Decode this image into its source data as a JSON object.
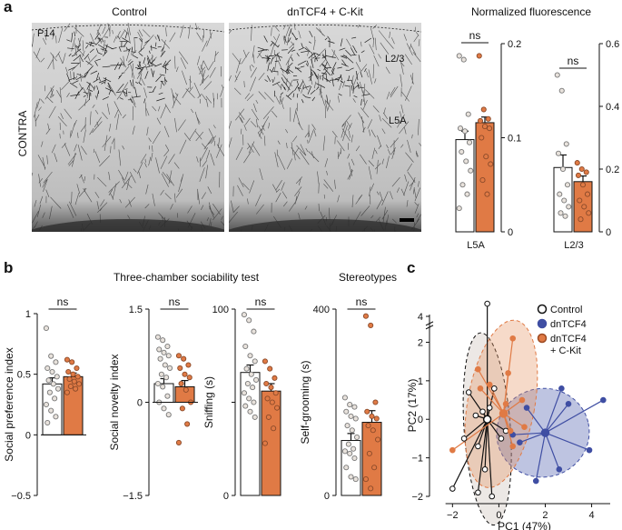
{
  "panel_a": {
    "label": "a",
    "images": [
      {
        "title": "Control",
        "age_label": "P14"
      },
      {
        "title": "dnTCF4 + C-Kit",
        "layer_labels": [
          "L2/3",
          "L5A"
        ]
      }
    ],
    "side_label": "CONTRA",
    "fluor_title": "Normalized fluorescence"
  },
  "panel_b": {
    "label": "b",
    "title_sociability": "Three-chamber sociability test",
    "title_stereotypes": "Stereotypes"
  },
  "panel_c": {
    "label": "c",
    "legend": [
      "Control",
      "dnTCF4",
      "dnTCF4\n+ C-Kit"
    ]
  },
  "colors": {
    "control": "#ffffff",
    "dntcf4": "#3f4ea3",
    "ckit": "#e07a45",
    "control_fill": "#e8e2dc"
  },
  "chart_data": [
    {
      "type": "bar",
      "id": "fluor_L5A",
      "xlabel": "L5A",
      "sig": "ns",
      "ylim": [
        0,
        0.2
      ],
      "yticks": [
        0,
        0.1,
        0.2
      ],
      "ytick_labels": [
        "0",
        "0.1",
        "0.2"
      ],
      "series": [
        {
          "name": "Control",
          "mean": 0.098,
          "sem": 0.009,
          "points": [
            0.187,
            0.183,
            0.125,
            0.11,
            0.107,
            0.095,
            0.085,
            0.075,
            0.065,
            0.05,
            0.04,
            0.025
          ]
        },
        {
          "name": "dnTCF4 + C-Kit",
          "mean": 0.116,
          "sem": 0.006,
          "points": [
            0.187,
            0.13,
            0.12,
            0.118,
            0.112,
            0.11,
            0.1,
            0.08,
            0.072,
            0.055,
            0.04
          ]
        }
      ]
    },
    {
      "type": "bar",
      "id": "fluor_L23",
      "xlabel": "L2/3",
      "sig": "ns",
      "ylim": [
        0,
        0.6
      ],
      "yticks": [
        0,
        0.2,
        0.4,
        0.6
      ],
      "ytick_labels": [
        "0",
        "0.2",
        "0.4",
        "0.6"
      ],
      "series": [
        {
          "name": "Control",
          "mean": 0.205,
          "sem": 0.04,
          "points": [
            0.5,
            0.45,
            0.28,
            0.25,
            0.2,
            0.15,
            0.12,
            0.1,
            0.08,
            0.06,
            0.05
          ]
        },
        {
          "name": "dnTCF4 + C-Kit",
          "mean": 0.16,
          "sem": 0.018,
          "points": [
            0.22,
            0.2,
            0.19,
            0.18,
            0.15,
            0.12,
            0.1,
            0.08,
            0.06,
            0.04
          ]
        }
      ]
    },
    {
      "type": "bar",
      "id": "social_preference",
      "ylabel": "Social preference index",
      "sig": "ns",
      "ylim": [
        -0.5,
        1
      ],
      "yticks": [
        -0.5,
        0,
        0.5,
        1
      ],
      "ytick_labels": [
        "−0.5",
        "0",
        "0.5",
        "1"
      ],
      "series": [
        {
          "name": "Control",
          "mean": 0.42,
          "sem": 0.05,
          "points": [
            0.88,
            0.65,
            0.6,
            0.55,
            0.52,
            0.48,
            0.45,
            0.42,
            0.38,
            0.35,
            0.3,
            0.25,
            0.2,
            0.15,
            0.1
          ]
        },
        {
          "name": "dnTCF4 + C-Kit",
          "mean": 0.48,
          "sem": 0.03,
          "points": [
            0.62,
            0.6,
            0.55,
            0.52,
            0.5,
            0.48,
            0.46,
            0.44,
            0.42,
            0.4,
            0.38,
            0.35
          ]
        }
      ]
    },
    {
      "type": "bar",
      "id": "social_novelty",
      "ylabel": "Social novelty index",
      "sig": "ns",
      "ylim": [
        -1.5,
        1.5
      ],
      "yticks": [
        -1.5,
        0,
        1.5
      ],
      "ytick_labels": [
        "−1.5",
        "0",
        "1.5"
      ],
      "series": [
        {
          "name": "Control",
          "mean": 0.3,
          "sem": 0.08,
          "points": [
            1.05,
            1.0,
            0.9,
            0.85,
            0.8,
            0.75,
            0.7,
            0.6,
            0.55,
            0.45,
            0.4,
            0.3,
            0.25,
            0.1,
            0.0,
            -0.1,
            -0.2
          ]
        },
        {
          "name": "dnTCF4 + C-Kit",
          "mean": 0.25,
          "sem": 0.1,
          "points": [
            0.75,
            0.7,
            0.6,
            0.55,
            0.45,
            0.4,
            0.3,
            0.2,
            0.0,
            -0.1,
            -0.35,
            -0.65
          ]
        }
      ]
    },
    {
      "type": "bar",
      "id": "sniffing",
      "ylabel": "Sniffing (s)",
      "sig": "ns",
      "ylim": [
        0,
        100
      ],
      "yticks": [
        0,
        50,
        100
      ],
      "ytick_labels": [
        "0",
        "",
        "100"
      ],
      "series": [
        {
          "name": "Control",
          "mean": 66,
          "sem": 4,
          "points": [
            97,
            94,
            88,
            80,
            75,
            72,
            68,
            65,
            62,
            60,
            58,
            55,
            52,
            50,
            48,
            45,
            42
          ]
        },
        {
          "name": "dnTCF4 + C-Kit",
          "mean": 56,
          "sem": 4,
          "points": [
            72,
            68,
            63,
            60,
            58,
            55,
            52,
            50,
            47,
            42,
            36,
            28
          ]
        }
      ]
    },
    {
      "type": "bar",
      "id": "self_grooming",
      "ylabel": "Self-grooming (s)",
      "sig": "ns",
      "ylim": [
        0,
        400
      ],
      "yticks": [
        0,
        400
      ],
      "ytick_labels": [
        "0",
        "400"
      ],
      "series": [
        {
          "name": "Control",
          "mean": 118,
          "sem": 15,
          "points": [
            210,
            195,
            190,
            180,
            170,
            165,
            150,
            140,
            125,
            110,
            100,
            95,
            90,
            80,
            60,
            40,
            35
          ]
        },
        {
          "name": "dnTCF4 + C-Kit",
          "mean": 157,
          "sem": 25,
          "points": [
            385,
            365,
            200,
            180,
            170,
            165,
            150,
            140,
            120,
            90,
            60,
            35,
            15
          ]
        }
      ]
    },
    {
      "type": "scatter",
      "id": "pca",
      "xlabel": "PC1 (47%)",
      "ylabel": "PC2 (17%)",
      "xlim": [
        -2.6,
        4.8
      ],
      "ylim": [
        -2,
        4
      ],
      "xticks": [
        -2,
        0,
        2,
        4
      ],
      "yticks": [
        -2,
        -1,
        0,
        1,
        2,
        4
      ],
      "axis_break_y": [
        2.2,
        3.8
      ],
      "series": [
        {
          "name": "Control",
          "centroid": [
            -0.5,
            0.0
          ],
          "ellipse": {
            "cx": -0.5,
            "cy": -0.25,
            "rx": 1.0,
            "ry": 2.5,
            "angle": -4
          },
          "points": [
            [
              -0.5,
              3.0
            ],
            [
              -1.3,
              0.7
            ],
            [
              -0.2,
              0.8
            ],
            [
              -1.0,
              0.1
            ],
            [
              -0.4,
              0.3
            ],
            [
              -0.7,
              0.2
            ],
            [
              -0.9,
              -0.7
            ],
            [
              -1.5,
              -0.5
            ],
            [
              -0.6,
              -1.3
            ],
            [
              -2.0,
              -1.8
            ],
            [
              -0.9,
              -1.9
            ],
            [
              -0.3,
              -2.0
            ],
            [
              0.3,
              -0.3
            ],
            [
              0.1,
              -0.5
            ]
          ]
        },
        {
          "name": "dnTCF4",
          "centroid": [
            2.0,
            -0.35
          ],
          "ellipse": {
            "cx": 1.9,
            "cy": -0.35,
            "rx": 2.0,
            "ry": 1.15,
            "angle": -12
          },
          "points": [
            [
              2.7,
              0.8
            ],
            [
              4.5,
              0.5
            ],
            [
              3.9,
              -0.8
            ],
            [
              1.6,
              -1.6
            ],
            [
              1.2,
              0.3
            ],
            [
              0.9,
              -0.6
            ],
            [
              0.6,
              -0.4
            ],
            [
              2.6,
              -1.3
            ],
            [
              3.0,
              0.4
            ]
          ]
        },
        {
          "name": "dnTCF4 + C-Kit",
          "centroid": [
            0.2,
            0.15
          ],
          "ellipse": {
            "cx": 0.1,
            "cy": 0.4,
            "rx": 1.45,
            "ry": 2.2,
            "angle": 10
          },
          "points": [
            [
              0.6,
              2.1
            ],
            [
              -0.9,
              1.3
            ],
            [
              0.4,
              1.2
            ],
            [
              1.0,
              0.5
            ],
            [
              0.3,
              0.4
            ],
            [
              -0.8,
              0.8
            ],
            [
              -2.0,
              -0.8
            ],
            [
              0.6,
              -0.7
            ],
            [
              0.5,
              -0.3
            ],
            [
              -0.4,
              0.9
            ],
            [
              1.1,
              -0.2
            ]
          ]
        }
      ]
    }
  ]
}
